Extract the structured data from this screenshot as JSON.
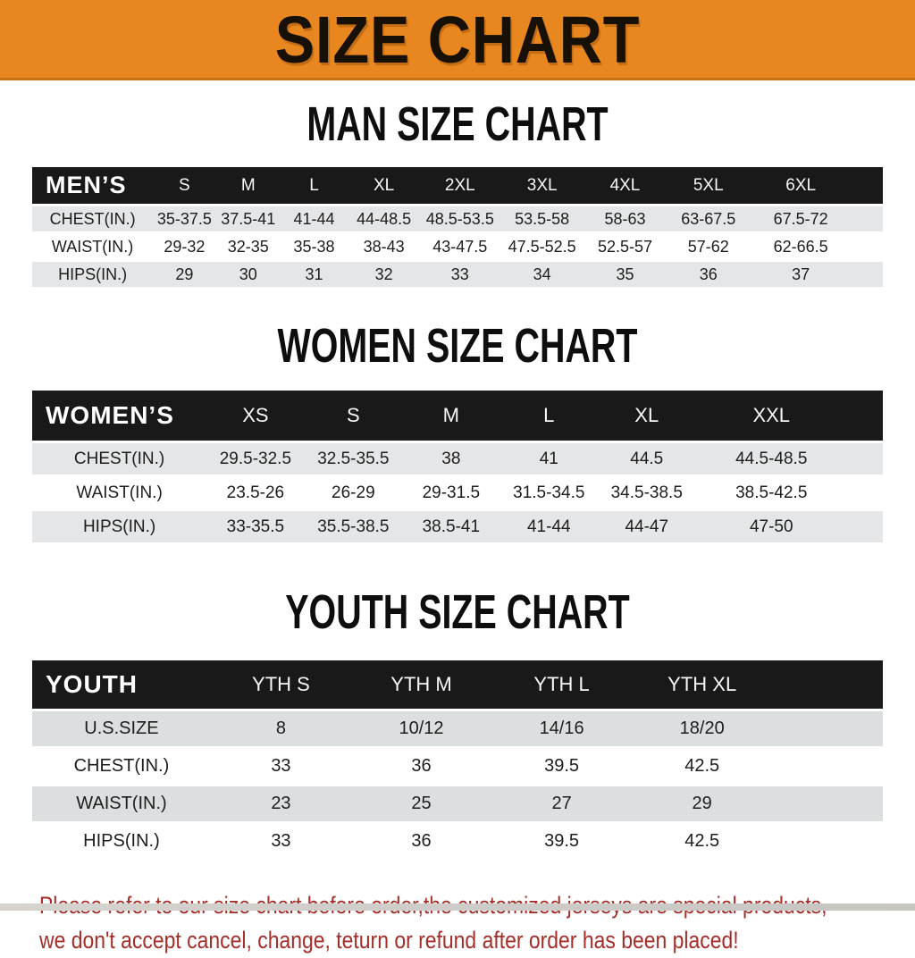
{
  "banner": {
    "title": "SIZE CHART"
  },
  "sections": {
    "man": {
      "title": "MAN SIZE CHART"
    },
    "women": {
      "title": "WOMEN SIZE CHART"
    },
    "youth": {
      "title": "YOUTH SIZE CHART"
    }
  },
  "tables": {
    "men": {
      "header": [
        "MEN’S",
        "S",
        "M",
        "L",
        "XL",
        "2XL",
        "3XL",
        "4XL",
        "5XL",
        "6XL"
      ],
      "rows": [
        [
          "CHEST(IN.)",
          "35-37.5",
          "37.5-41",
          "41-44",
          "44-48.5",
          "48.5-53.5",
          "53.5-58",
          "58-63",
          "63-67.5",
          "67.5-72"
        ],
        [
          "WAIST(IN.)",
          "29-32",
          "32-35",
          "35-38",
          "38-43",
          "43-47.5",
          "47.5-52.5",
          "52.5-57",
          "57-62",
          "62-66.5"
        ],
        [
          "HIPS(IN.)",
          "29",
          "30",
          "31",
          "32",
          "33",
          "34",
          "35",
          "36",
          "37"
        ]
      ]
    },
    "women": {
      "header": [
        "WOMEN’S",
        "XS",
        "S",
        "M",
        "L",
        "XL",
        "XXL"
      ],
      "rows": [
        [
          "CHEST(IN.)",
          "29.5-32.5",
          "32.5-35.5",
          "38",
          "41",
          "44.5",
          "44.5-48.5"
        ],
        [
          "WAIST(IN.)",
          "23.5-26",
          "26-29",
          "29-31.5",
          "31.5-34.5",
          "34.5-38.5",
          "38.5-42.5"
        ],
        [
          "HIPS(IN.)",
          "33-35.5",
          "35.5-38.5",
          "38.5-41",
          "41-44",
          "44-47",
          "47-50"
        ]
      ]
    },
    "youth": {
      "header": [
        "YOUTH",
        "YTH S",
        "YTH M",
        "YTH L",
        "YTH XL"
      ],
      "rows": [
        [
          "U.S.SIZE",
          "8",
          "10/12",
          "14/16",
          "18/20"
        ],
        [
          "CHEST(IN.)",
          "33",
          "36",
          "39.5",
          "42.5"
        ],
        [
          "WAIST(IN.)",
          "23",
          "25",
          "27",
          "29"
        ],
        [
          "HIPS(IN.)",
          "33",
          "36",
          "39.5",
          "42.5"
        ]
      ]
    }
  },
  "footer": {
    "line1": "Please refer to our size chart before order,the customized jerseys are special products,",
    "line2": "we don't accept cancel, change, teturn or refund after order has been placed!"
  },
  "colors": {
    "banner_bg": "#e8861f",
    "banner_text": "#171007",
    "table_header_bg": "#191919",
    "table_header_text": "#ffffff",
    "row_stripe": "#e5e6e7",
    "disclaimer_red": "#a52e29"
  }
}
